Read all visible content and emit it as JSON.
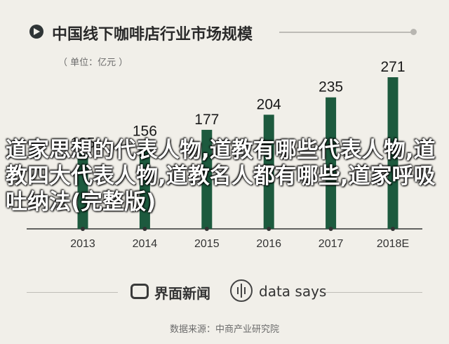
{
  "header": {
    "title": "中国线下咖啡店行业市场规模"
  },
  "unit_note": "（ 单位：亿元 ）",
  "overlay_text": "道家思想的代表人物,道教有哪些代表人物,道教四大代表人物,道教名人都有哪些,道家呼吸吐纳法(完整版)",
  "footer": {
    "brand_cn": "界面新闻",
    "brand_en": "data says"
  },
  "source": "数据来源：中商产业研究院",
  "colors": {
    "bar": "#1d5a3e",
    "axis": "#333333",
    "background": "#f1efe9"
  },
  "chart_data": {
    "type": "bar",
    "categories": [
      "2013",
      "2014",
      "2015",
      "2016",
      "2017",
      "2018E"
    ],
    "values": [
      135,
      156,
      177,
      204,
      235,
      271
    ],
    "value_labels": [
      "135",
      "156",
      "177",
      "204",
      "235",
      "271"
    ],
    "title": "中国线下咖啡店行业市场规模",
    "ylabel": "（ 单位：亿元 ）",
    "ylim": [
      0,
      271
    ],
    "grid": false,
    "legend": "none"
  }
}
